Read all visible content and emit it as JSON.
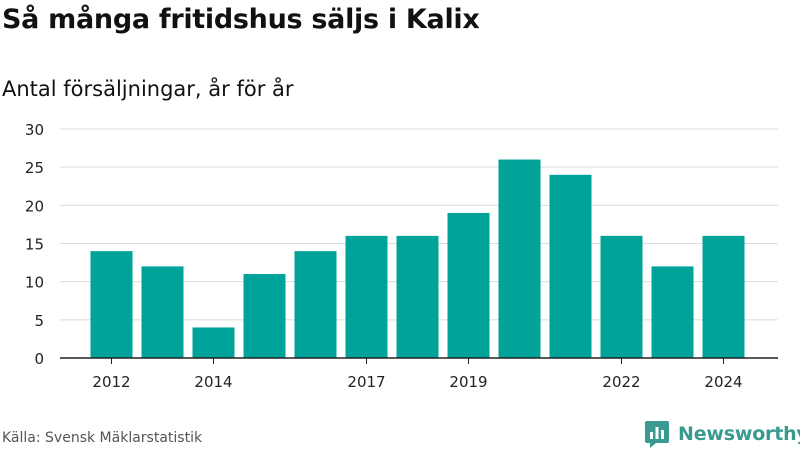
{
  "title": "Så många fritidshus säljs i Kalix",
  "subtitle": "Antal försäljningar, år för år",
  "source": "Källa: Svensk Mäklarstatistik",
  "brand": {
    "name": "Newsworthy",
    "color": "#3a9a8f",
    "icon": "newsworthy-logo-icon"
  },
  "colors": {
    "bar": "#00a39a",
    "grid": "#dcdcdc",
    "axis": "#222222"
  },
  "chart_data": {
    "type": "bar",
    "title": "Så många fritidshus säljs i Kalix",
    "subtitle": "Antal försäljningar, år för år",
    "xlabel": "",
    "ylabel": "",
    "categories": [
      "2012",
      "2013",
      "2014",
      "2015",
      "2016",
      "2017",
      "2018",
      "2019",
      "2020",
      "2021",
      "2022",
      "2023",
      "2024"
    ],
    "values": [
      14,
      12,
      4,
      11,
      14,
      16,
      16,
      19,
      26,
      24,
      16,
      12,
      16
    ],
    "x_tick_labels": [
      "2012",
      "2014",
      "2017",
      "2019",
      "2022",
      "2024"
    ],
    "y_ticks": [
      0,
      5,
      10,
      15,
      20,
      25,
      30
    ],
    "ylim": [
      0,
      30
    ],
    "grid": true,
    "legend": "none"
  }
}
